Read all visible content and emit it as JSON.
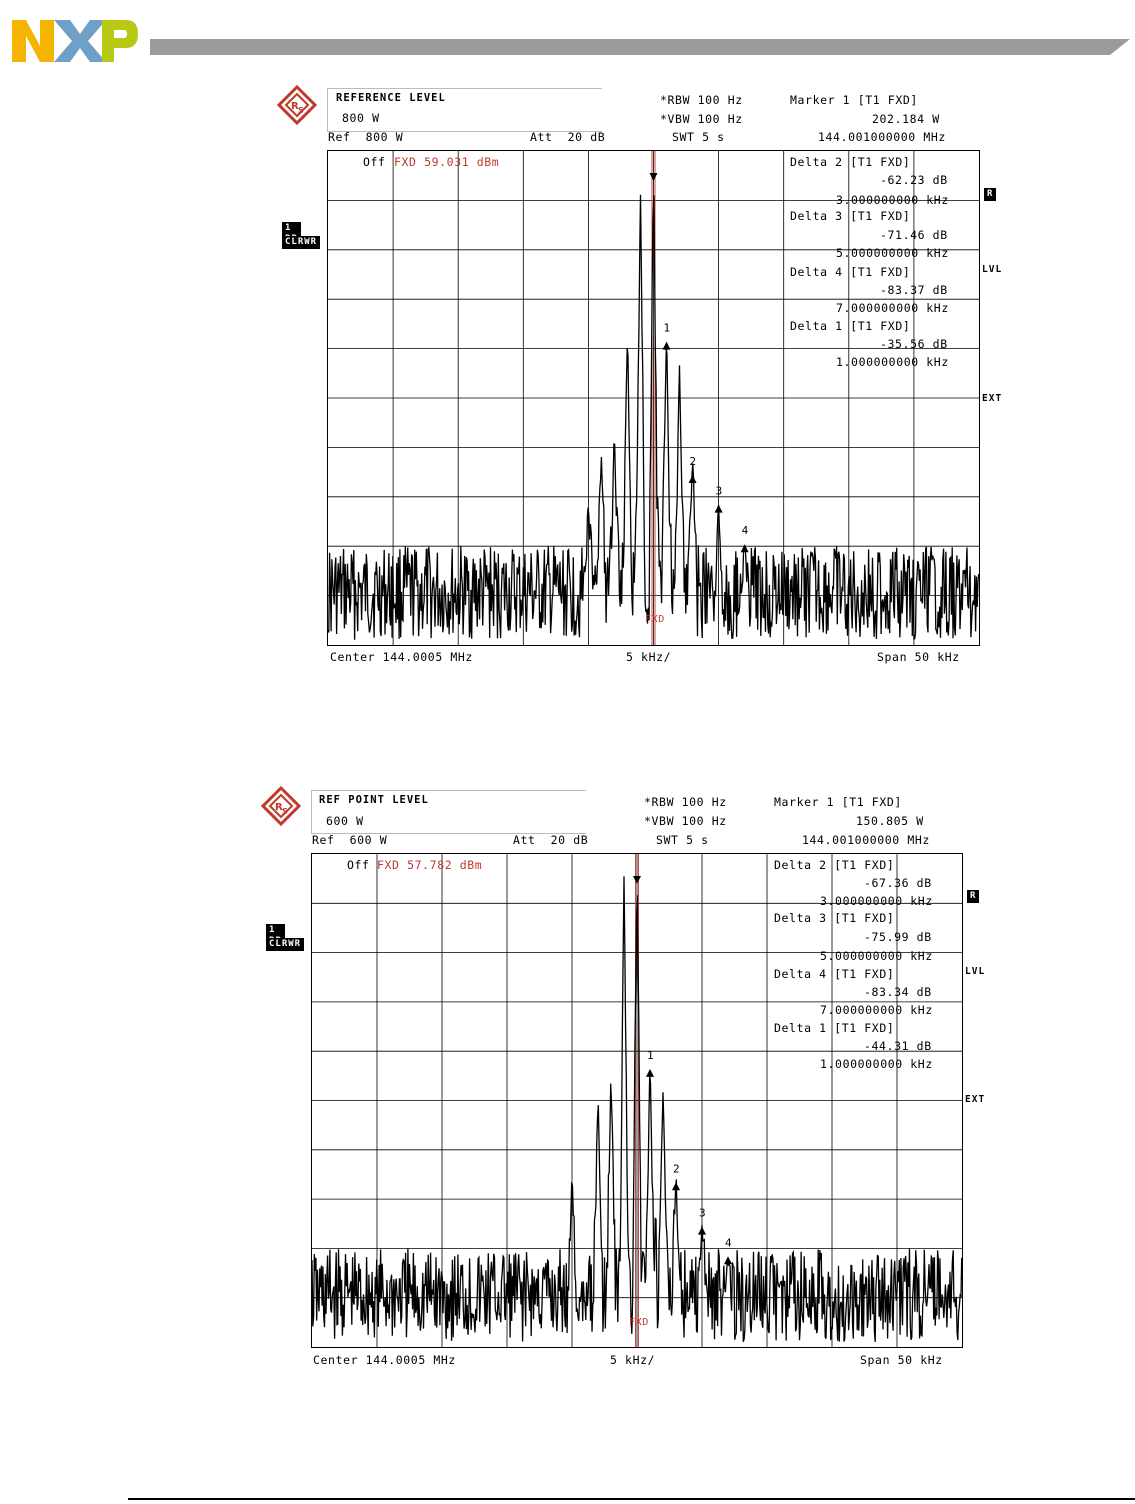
{
  "brand": {
    "logo_text": "NXP",
    "colors": {
      "n": "#f5b400",
      "x": "#6ea0c8",
      "p": "#b7c914",
      "bar": "#9b9b9b"
    }
  },
  "chart_data": [
    {
      "type": "line",
      "ref_label": "REFERENCE LEVEL",
      "ref_value": "800 W",
      "rbw": "*RBW 100 Hz",
      "vbw": "*VBW 100 Hz",
      "swt": "SWT 5 s",
      "ref_line": "Ref  800 W",
      "att": "Att  20 dB",
      "marker_title": "Marker 1 [T1 FXD]",
      "marker_value": "202.184 W",
      "marker_freq": "144.001000000 MHz",
      "offset_prefix": "Off",
      "offset_text": "FXD 59.031 dBm",
      "fxd_label": "FXD",
      "tag_top": "1 RP",
      "tag_bottom": "CLRWR",
      "side_r": "R",
      "side_lvl": "LVL",
      "side_ext": "EXT",
      "deltas": [
        {
          "title": "Delta 2 [T1 FXD]",
          "db": "-62.23 dB",
          "freq": "3.000000000 kHz"
        },
        {
          "title": "Delta 3 [T1 FXD]",
          "db": "-71.46 dB",
          "freq": "5.000000000 kHz"
        },
        {
          "title": "Delta 4 [T1 FXD]",
          "db": "-83.37 dB",
          "freq": "7.000000000 kHz"
        },
        {
          "title": "Delta 1 [T1 FXD]",
          "db": "-35.56 dB",
          "freq": "1.000000000 kHz"
        }
      ],
      "x_center": "Center 144.0005 MHz",
      "x_div": "5 kHz/",
      "x_span": "Span 50 kHz",
      "x_range_khz": [
        -25,
        25
      ],
      "y_divisions": 10,
      "grid": true,
      "markers": [
        {
          "label": "1",
          "x_khz": 1.0,
          "level_div": 3.9
        },
        {
          "label": "2",
          "x_khz": 3.0,
          "level_div": 6.6
        },
        {
          "label": "3",
          "x_khz": 5.0,
          "level_div": 7.2
        },
        {
          "label": "4",
          "x_khz": 7.0,
          "level_div": 8.0
        }
      ],
      "peaks": [
        {
          "x_khz": -1.0,
          "level_div": 0.9
        },
        {
          "x_khz": 0.0,
          "level_div": 0.4
        },
        {
          "x_khz": 1.0,
          "level_div": 3.6
        },
        {
          "x_khz": 2.0,
          "level_div": 4.3
        },
        {
          "x_khz": -2.0,
          "level_div": 3.6
        },
        {
          "x_khz": -3.0,
          "level_div": 5.7
        },
        {
          "x_khz": 3.0,
          "level_div": 6.2
        },
        {
          "x_khz": -4.0,
          "level_div": 6.2
        },
        {
          "x_khz": 5.0,
          "level_div": 7.2
        },
        {
          "x_khz": -5.0,
          "level_div": 7.2
        },
        {
          "x_khz": 7.0,
          "level_div": 8.0
        }
      ],
      "noise_floor_div": [
        8.0,
        9.9
      ]
    },
    {
      "type": "line",
      "ref_label": "REF POINT LEVEL",
      "ref_value": "600 W",
      "rbw": "*RBW 100 Hz",
      "vbw": "*VBW 100 Hz",
      "swt": "SWT 5 s",
      "ref_line": "Ref  600 W",
      "att": "Att  20 dB",
      "marker_title": "Marker 1 [T1 FXD]",
      "marker_value": "150.805 W",
      "marker_freq": "144.001000000 MHz",
      "offset_prefix": "Off",
      "offset_text": "FXD 57.782 dBm",
      "fxd_label": "FXD",
      "tag_top": "1 RP",
      "tag_bottom": "CLRWR",
      "side_r": "R",
      "side_lvl": "LVL",
      "side_ext": "EXT",
      "deltas": [
        {
          "title": "Delta 2 [T1 FXD]",
          "db": "-67.36 dB",
          "freq": "3.000000000 kHz"
        },
        {
          "title": "Delta 3 [T1 FXD]",
          "db": "-75.99 dB",
          "freq": "5.000000000 kHz"
        },
        {
          "title": "Delta 4 [T1 FXD]",
          "db": "-83.34 dB",
          "freq": "7.000000000 kHz"
        },
        {
          "title": "Delta 1 [T1 FXD]",
          "db": "-44.31 dB",
          "freq": "1.000000000 kHz"
        }
      ],
      "x_center": "Center 144.0005 MHz",
      "x_div": "5 kHz/",
      "x_span": "Span 50 kHz",
      "x_range_khz": [
        -25,
        25
      ],
      "y_divisions": 10,
      "grid": true,
      "markers": [
        {
          "label": "1",
          "x_khz": 1.0,
          "level_div": 4.4
        },
        {
          "label": "2",
          "x_khz": 3.0,
          "level_div": 6.7
        },
        {
          "label": "3",
          "x_khz": 5.0,
          "level_div": 7.6
        },
        {
          "label": "4",
          "x_khz": 7.0,
          "level_div": 8.2
        }
      ],
      "peaks": [
        {
          "x_khz": -1.0,
          "level_div": 0.5
        },
        {
          "x_khz": 0.0,
          "level_div": 0.3
        },
        {
          "x_khz": 1.0,
          "level_div": 4.2
        },
        {
          "x_khz": 2.0,
          "level_div": 4.8
        },
        {
          "x_khz": -2.0,
          "level_div": 4.4
        },
        {
          "x_khz": -3.0,
          "level_div": 4.9
        },
        {
          "x_khz": 3.0,
          "level_div": 6.5
        },
        {
          "x_khz": -5.0,
          "level_div": 6.5
        },
        {
          "x_khz": 5.0,
          "level_div": 7.5
        },
        {
          "x_khz": 7.0,
          "level_div": 8.2
        }
      ],
      "noise_floor_div": [
        8.0,
        9.9
      ]
    }
  ]
}
